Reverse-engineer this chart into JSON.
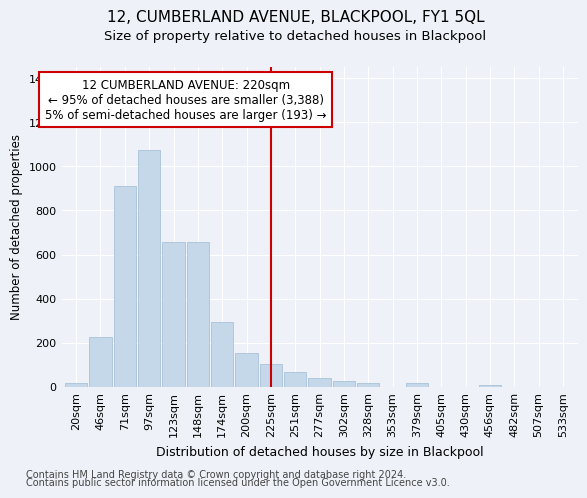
{
  "title": "12, CUMBERLAND AVENUE, BLACKPOOL, FY1 5QL",
  "subtitle": "Size of property relative to detached houses in Blackpool",
  "xlabel": "Distribution of detached houses by size in Blackpool",
  "ylabel": "Number of detached properties",
  "categories": [
    "20sqm",
    "46sqm",
    "71sqm",
    "97sqm",
    "123sqm",
    "148sqm",
    "174sqm",
    "200sqm",
    "225sqm",
    "251sqm",
    "277sqm",
    "302sqm",
    "328sqm",
    "353sqm",
    "379sqm",
    "405sqm",
    "430sqm",
    "456sqm",
    "482sqm",
    "507sqm",
    "533sqm"
  ],
  "values": [
    18,
    225,
    910,
    1075,
    655,
    655,
    295,
    155,
    105,
    70,
    40,
    25,
    20,
    0,
    20,
    0,
    0,
    10,
    0,
    0,
    0
  ],
  "bar_color": "#c5d8ea",
  "bar_edge_color": "#a0bcd4",
  "background_color": "#eef2f8",
  "grid_color": "#ffffff",
  "vline_x": 8.0,
  "vline_color": "#cc0000",
  "annotation_title": "12 CUMBERLAND AVENUE: 220sqm",
  "annotation_line1": "← 95% of detached houses are smaller (3,388)",
  "annotation_line2": "5% of semi-detached houses are larger (193) →",
  "annotation_box_color": "#cc0000",
  "ylim": [
    0,
    1450
  ],
  "yticks": [
    0,
    200,
    400,
    600,
    800,
    1000,
    1200,
    1400
  ],
  "footnote1": "Contains HM Land Registry data © Crown copyright and database right 2024.",
  "footnote2": "Contains public sector information licensed under the Open Government Licence v3.0.",
  "title_fontsize": 11,
  "subtitle_fontsize": 9.5,
  "xlabel_fontsize": 9,
  "ylabel_fontsize": 8.5,
  "tick_fontsize": 8,
  "annotation_fontsize": 8.5,
  "footnote_fontsize": 7
}
